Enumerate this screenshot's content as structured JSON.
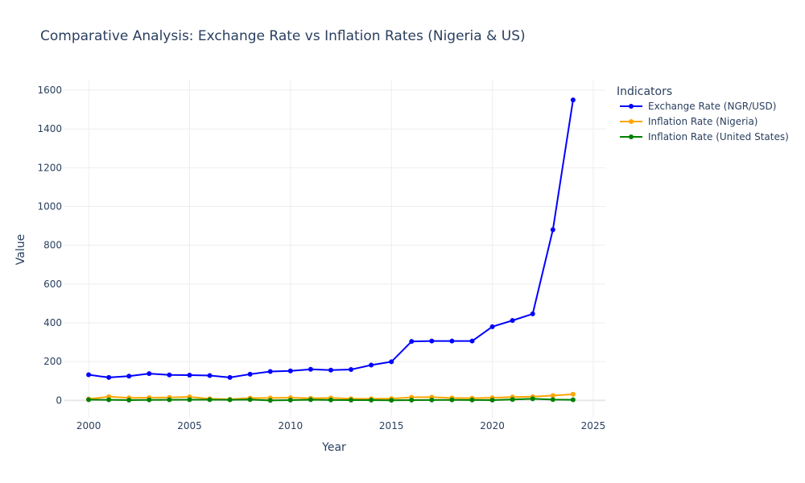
{
  "chart_data": {
    "type": "line",
    "title": "Comparative Analysis: Exchange Rate vs Inflation Rates (Nigeria & US)",
    "xlabel": "Year",
    "ylabel": "Value",
    "xlim": [
      1998.8,
      2025.6
    ],
    "ylim": [
      -90,
      1650
    ],
    "x_ticks": [
      2000,
      2005,
      2010,
      2015,
      2020,
      2025
    ],
    "y_ticks": [
      0,
      200,
      400,
      600,
      800,
      1000,
      1200,
      1400,
      1600
    ],
    "grid": true,
    "legend": {
      "title": "Indicators",
      "position": "top-right-outside"
    },
    "x": [
      2000,
      2001,
      2002,
      2003,
      2004,
      2005,
      2006,
      2007,
      2008,
      2009,
      2010,
      2011,
      2012,
      2013,
      2014,
      2015,
      2016,
      2017,
      2018,
      2019,
      2020,
      2021,
      2022,
      2023,
      2024
    ],
    "series": [
      {
        "name": "Exchange Rate (NGR/USD)",
        "color": "#0000ff",
        "values": [
          132,
          118,
          125,
          138,
          131,
          130,
          128,
          118,
          135,
          149,
          152,
          160,
          156,
          159,
          182,
          199,
          304,
          306,
          306,
          306,
          380,
          412,
          446,
          880,
          1550
        ]
      },
      {
        "name": "Inflation Rate (Nigeria)",
        "color": "#ffa500",
        "values": [
          6.9,
          18.9,
          12.9,
          14.0,
          15.0,
          17.9,
          8.2,
          5.4,
          11.6,
          12.5,
          13.7,
          10.8,
          12.2,
          8.5,
          8.1,
          9.0,
          15.7,
          16.5,
          12.1,
          11.4,
          13.2,
          17.0,
          18.8,
          24.7,
          31.7
        ]
      },
      {
        "name": "Inflation Rate (United States)",
        "color": "#008000",
        "values": [
          3.4,
          2.8,
          1.6,
          2.3,
          2.7,
          3.4,
          3.2,
          2.9,
          3.8,
          -0.4,
          1.6,
          3.2,
          2.1,
          1.5,
          1.6,
          0.1,
          1.3,
          2.1,
          2.4,
          1.8,
          1.2,
          4.7,
          8.0,
          4.1,
          2.9
        ]
      }
    ]
  }
}
